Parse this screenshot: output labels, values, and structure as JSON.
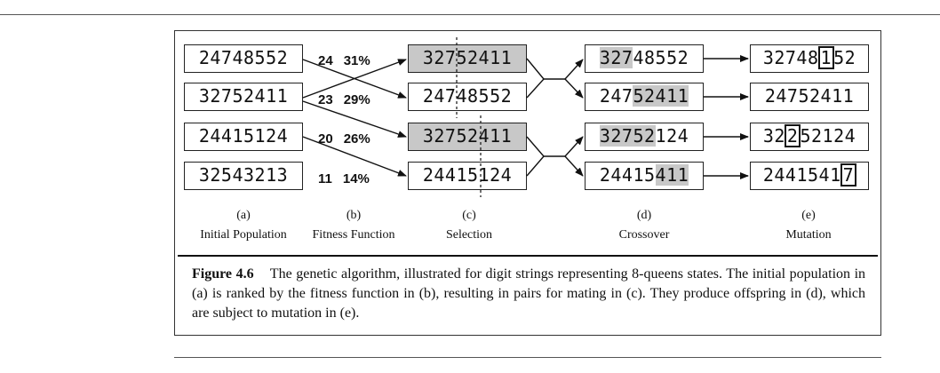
{
  "population": [
    "24748552",
    "32752411",
    "24415124",
    "32543213"
  ],
  "fitness": [
    {
      "score": "24",
      "percent": "31%"
    },
    {
      "score": "23",
      "percent": "29%"
    },
    {
      "score": "20",
      "percent": "26%"
    },
    {
      "score": "11",
      "percent": "14%"
    }
  ],
  "selection": [
    "32752411",
    "24748552",
    "32752411",
    "24415124"
  ],
  "crossover": [
    {
      "head": "327",
      "tail": "48552",
      "shaded": "head"
    },
    {
      "head": "247",
      "tail": "52411",
      "shaded": "tail"
    },
    {
      "head": "32752",
      "tail": "124",
      "shaded": "head"
    },
    {
      "head": "24415",
      "tail": "411",
      "shaded": "tail"
    }
  ],
  "mutation": [
    {
      "before": "32748",
      "digit": "1",
      "after": "52"
    },
    {
      "before": "24752411",
      "digit": "",
      "after": ""
    },
    {
      "before": "32",
      "digit": "2",
      "after": "52124"
    },
    {
      "before": "2441541",
      "digit": "7",
      "after": ""
    }
  ],
  "columns": [
    {
      "letter": "(a)",
      "title": "Initial Population"
    },
    {
      "letter": "(b)",
      "title": "Fitness Function"
    },
    {
      "letter": "(c)",
      "title": "Selection"
    },
    {
      "letter": "(d)",
      "title": "Crossover"
    },
    {
      "letter": "(e)",
      "title": "Mutation"
    }
  ],
  "caption": {
    "label": "Figure 4.6",
    "text": "The genetic algorithm, illustrated for digit strings representing 8-queens states. The initial population in (a) is ranked by the fitness function in (b), resulting in pairs for mating in (c). They produce offspring in (d), which are subject to mutation in (e)."
  }
}
